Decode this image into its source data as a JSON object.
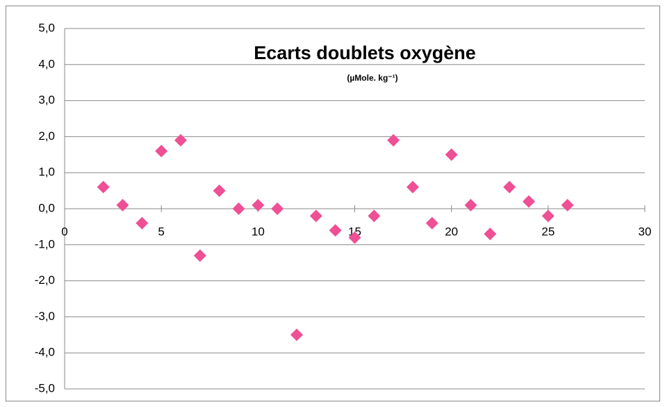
{
  "chart_data": {
    "type": "scatter",
    "title": "Ecarts doublets oxygène",
    "subtitle": "(µMole. kg⁻¹)",
    "x": [
      2,
      3,
      4,
      5,
      6,
      7,
      8,
      9,
      10,
      11,
      12,
      13,
      14,
      15,
      16,
      17,
      18,
      19,
      20,
      21,
      22,
      23,
      24,
      25,
      26
    ],
    "values": [
      0.6,
      0.1,
      -0.4,
      1.6,
      1.9,
      -1.3,
      0.5,
      0.0,
      0.1,
      0.0,
      -3.5,
      -0.2,
      -0.6,
      -0.8,
      -0.2,
      1.9,
      0.6,
      -0.4,
      1.5,
      0.1,
      -0.7,
      0.6,
      0.2,
      -0.2,
      0.1
    ],
    "color": "#ee4f95",
    "xlim": [
      0,
      30
    ],
    "xticks": [
      0,
      5,
      10,
      15,
      20,
      25,
      30
    ],
    "ylim": [
      -5,
      5
    ],
    "yticks": [
      {
        "value": -5,
        "label": "-5,0"
      },
      {
        "value": -4,
        "label": "-4,0"
      },
      {
        "value": -3,
        "label": "-3,0"
      },
      {
        "value": -2,
        "label": "-2,0"
      },
      {
        "value": -1,
        "label": "-1,0"
      },
      {
        "value": 0,
        "label": "0,0"
      },
      {
        "value": 1,
        "label": "1,0"
      },
      {
        "value": 2,
        "label": "2,0"
      },
      {
        "value": 3,
        "label": "3,0"
      },
      {
        "value": 4,
        "label": "4,0"
      },
      {
        "value": 5,
        "label": "5,0"
      }
    ],
    "grid": true
  }
}
